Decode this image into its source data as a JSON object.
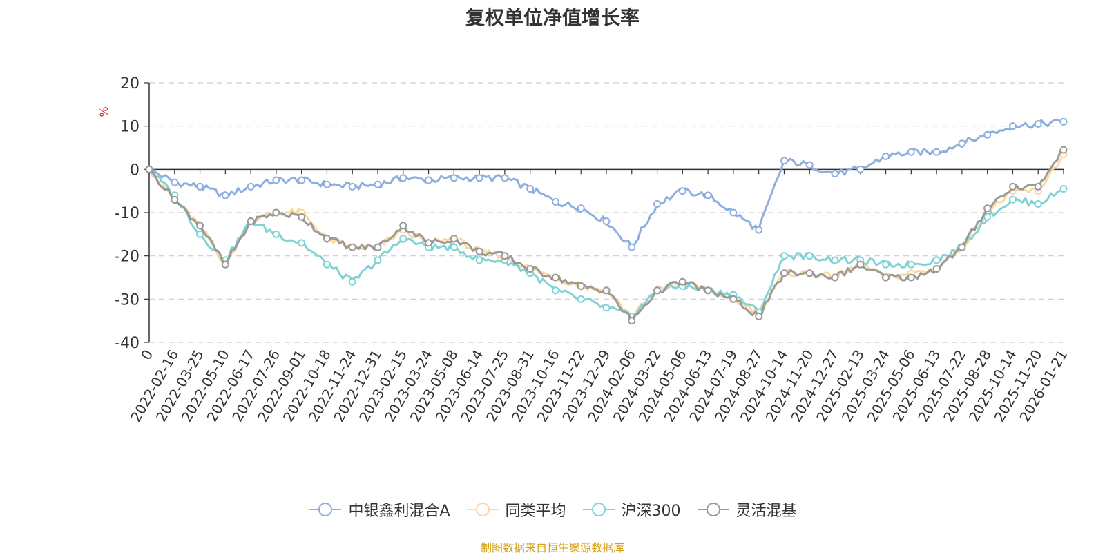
{
  "source_note": "制图数据来自恒生聚源数据库",
  "colors": {
    "fund": "#8eaede",
    "peer": "#fdd79b",
    "index": "#7fd3d6",
    "category": "#999999",
    "ylabel": "#e02020",
    "source": "#d4a017"
  },
  "chart_data": {
    "type": "line",
    "title": "复权单位净值增长率",
    "ylabel": "%",
    "xlabel": "",
    "ylim": [
      -40,
      20
    ],
    "yticks": [
      20,
      10,
      0,
      -10,
      -20,
      -30,
      -40
    ],
    "grid": true,
    "legend_position": "bottom",
    "categories": [
      "0",
      "2022-02-16",
      "2022-03-25",
      "2022-05-10",
      "2022-06-17",
      "2022-07-26",
      "2022-09-01",
      "2022-10-18",
      "2022-11-24",
      "2022-12-31",
      "2023-02-15",
      "2023-03-24",
      "2023-05-08",
      "2023-06-14",
      "2023-07-25",
      "2023-08-31",
      "2023-10-16",
      "2023-11-22",
      "2023-12-29",
      "2024-02-06",
      "2024-03-22",
      "2024-05-06",
      "2024-06-13",
      "2024-07-19",
      "2024-08-27",
      "2024-10-14",
      "2024-11-20",
      "2024-12-27",
      "2025-02-13",
      "2025-03-24",
      "2025-05-06",
      "2025-06-13",
      "2025-07-22",
      "2025-08-28",
      "2025-10-14",
      "2025-11-20",
      "2026-01-21"
    ],
    "series": [
      {
        "name": "中银鑫利混合A",
        "color": "#8eaede",
        "values": [
          0,
          -3,
          -4,
          -6,
          -4,
          -2.5,
          -2.5,
          -3.5,
          -4,
          -3.5,
          -2,
          -2.5,
          -2,
          -2,
          -2,
          -4.5,
          -7.5,
          -9,
          -12,
          -18,
          -8,
          -5,
          -6,
          -10,
          -14,
          2,
          1,
          -1,
          0,
          3,
          4,
          4,
          6,
          8,
          10,
          10.5,
          11
        ]
      },
      {
        "name": "同类平均",
        "color": "#fdd79b",
        "values": [
          0,
          -7,
          -13,
          -22,
          -12,
          -10,
          -10,
          -16,
          -18,
          -18,
          -14,
          -17,
          -16,
          -19,
          -20,
          -23,
          -25,
          -27,
          -28,
          -34,
          -28,
          -26,
          -28,
          -30,
          -33,
          -24,
          -24,
          -25,
          -22,
          -25,
          -24,
          -23,
          -18,
          -10,
          -5,
          -5,
          3.5
        ]
      },
      {
        "name": "沪深300",
        "color": "#7fd3d6",
        "values": [
          0,
          -6,
          -15,
          -21,
          -12,
          -15,
          -17,
          -22,
          -26,
          -21,
          -16,
          -18,
          -18,
          -21,
          -21,
          -24,
          -28,
          -30,
          -32,
          -34,
          -28,
          -27,
          -28,
          -29,
          -33,
          -20,
          -20,
          -21,
          -21,
          -22,
          -22,
          -21,
          -18,
          -11,
          -7,
          -8,
          -4.5
        ]
      },
      {
        "name": "灵活混基",
        "color": "#999999",
        "values": [
          0,
          -7,
          -13,
          -22,
          -12,
          -10,
          -11,
          -16,
          -18,
          -18,
          -13,
          -17,
          -16,
          -19,
          -20,
          -23,
          -25,
          -27,
          -28,
          -35,
          -28,
          -26,
          -28,
          -30,
          -34,
          -24,
          -24,
          -25,
          -22,
          -25,
          -25,
          -23,
          -18,
          -9,
          -4,
          -4,
          4.5
        ]
      }
    ]
  }
}
